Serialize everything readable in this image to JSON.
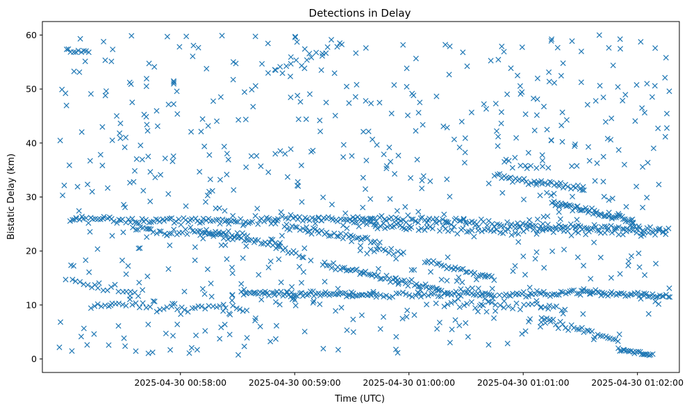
{
  "chart_data": {
    "type": "scatter",
    "title": "Detections in Delay",
    "xlabel": "Time (UTC)",
    "ylabel": "Bistatic Delay (km)",
    "marker": "x",
    "marker_color": "#1f77b4",
    "x_ticks": [
      {
        "t": 60,
        "label": "2025-04-30 00:58:00"
      },
      {
        "t": 120,
        "label": "2025-04-30 00:59:00"
      },
      {
        "t": 180,
        "label": "2025-04-30 01:00:00"
      },
      {
        "t": 240,
        "label": "2025-04-30 01:01:00"
      },
      {
        "t": 300,
        "label": "2025-04-30 01:02:00"
      }
    ],
    "y_ticks": [
      0,
      10,
      20,
      30,
      40,
      50,
      60
    ],
    "xlim": [
      -12.5,
      322
    ],
    "ylim": [
      -2.5,
      62.5
    ],
    "grid": false,
    "tracks": [
      {
        "t0": 2,
        "t1": 110,
        "y0": 25.8,
        "y1": 25.5,
        "n": 90,
        "jitter": 0.35
      },
      {
        "t0": 110,
        "t1": 210,
        "y0": 26.2,
        "y1": 25.6,
        "n": 80,
        "jitter": 0.35
      },
      {
        "t0": 210,
        "t1": 316,
        "y0": 25.1,
        "y1": 24.0,
        "n": 80,
        "jitter": 0.35
      },
      {
        "t0": 35,
        "t1": 95,
        "y0": 24.0,
        "y1": 23.0,
        "n": 45,
        "jitter": 0.4
      },
      {
        "t0": 70,
        "t1": 112,
        "y0": 23.5,
        "y1": 21.0,
        "n": 35,
        "jitter": 0.3
      },
      {
        "t0": 115,
        "t1": 165,
        "y0": 24.5,
        "y1": 21.5,
        "n": 40,
        "jitter": 0.3
      },
      {
        "t0": 150,
        "t1": 180,
        "y0": 25.5,
        "y1": 24.0,
        "n": 25,
        "jitter": 0.3
      },
      {
        "t0": 180,
        "t1": 250,
        "y0": 24.5,
        "y1": 23.5,
        "n": 45,
        "jitter": 0.4
      },
      {
        "t0": 250,
        "t1": 315,
        "y0": 24.0,
        "y1": 23.0,
        "n": 35,
        "jitter": 0.4
      },
      {
        "t0": 110,
        "t1": 125,
        "y0": 20.5,
        "y1": 19.0,
        "n": 12,
        "jitter": 0.3
      },
      {
        "t0": 160,
        "t1": 177,
        "y0": 20.5,
        "y1": 19.5,
        "n": 12,
        "jitter": 0.3
      },
      {
        "t0": 188,
        "t1": 225,
        "y0": 18.2,
        "y1": 15.0,
        "n": 30,
        "jitter": 0.3
      },
      {
        "t0": 135,
        "t1": 195,
        "y0": 17.5,
        "y1": 12.8,
        "n": 55,
        "jitter": 0.3
      },
      {
        "t0": 195,
        "t1": 225,
        "y0": 12.5,
        "y1": 11.8,
        "n": 25,
        "jitter": 0.25
      },
      {
        "t0": 92,
        "t1": 160,
        "y0": 12.3,
        "y1": 11.8,
        "n": 70,
        "jitter": 0.25
      },
      {
        "t0": 160,
        "t1": 200,
        "y0": 11.8,
        "y1": 12.0,
        "n": 25,
        "jitter": 0.25
      },
      {
        "t0": 230,
        "t1": 275,
        "y0": 11.8,
        "y1": 12.5,
        "n": 40,
        "jitter": 0.25
      },
      {
        "t0": 275,
        "t1": 316,
        "y0": 12.3,
        "y1": 11.5,
        "n": 40,
        "jitter": 0.25
      },
      {
        "t0": 15,
        "t1": 95,
        "y0": 10.2,
        "y1": 9.0,
        "n": 45,
        "jitter": 0.45
      },
      {
        "t0": 200,
        "t1": 262,
        "y0": 10.2,
        "y1": 9.5,
        "n": 30,
        "jitter": 0.45
      },
      {
        "t0": 225,
        "t1": 272,
        "y0": 34.0,
        "y1": 31.5,
        "n": 40,
        "jitter": 0.3
      },
      {
        "t0": 255,
        "t1": 298,
        "y0": 29.0,
        "y1": 25.5,
        "n": 55,
        "jitter": 0.3
      },
      {
        "t0": 250,
        "t1": 290,
        "y0": 7.5,
        "y1": 3.5,
        "n": 30,
        "jitter": 0.25
      },
      {
        "t0": 290,
        "t1": 308,
        "y0": 1.8,
        "y1": 0.7,
        "n": 22,
        "jitter": 0.15
      },
      {
        "t0": 0,
        "t1": 12,
        "y0": 57.2,
        "y1": 57.0,
        "n": 10,
        "jitter": 0.2
      },
      {
        "t0": 5,
        "t1": 40,
        "y0": 14.0,
        "y1": 12.5,
        "n": 18,
        "jitter": 0.5
      },
      {
        "t0": 110,
        "t1": 145,
        "y0": 54.0,
        "y1": 58.0,
        "n": 14,
        "jitter": 0.5
      },
      {
        "t0": 230,
        "t1": 250,
        "y0": 37.0,
        "y1": 35.0,
        "n": 8,
        "jitter": 0.4
      },
      {
        "t0": 205,
        "t1": 230,
        "y0": 14.0,
        "y1": 10.5,
        "n": 10,
        "jitter": 0.4
      }
    ],
    "scatter_count": 620,
    "scatter_trange": [
      -4,
      318
    ],
    "scatter_yrange": [
      0.5,
      60
    ],
    "seed": 20250430
  }
}
